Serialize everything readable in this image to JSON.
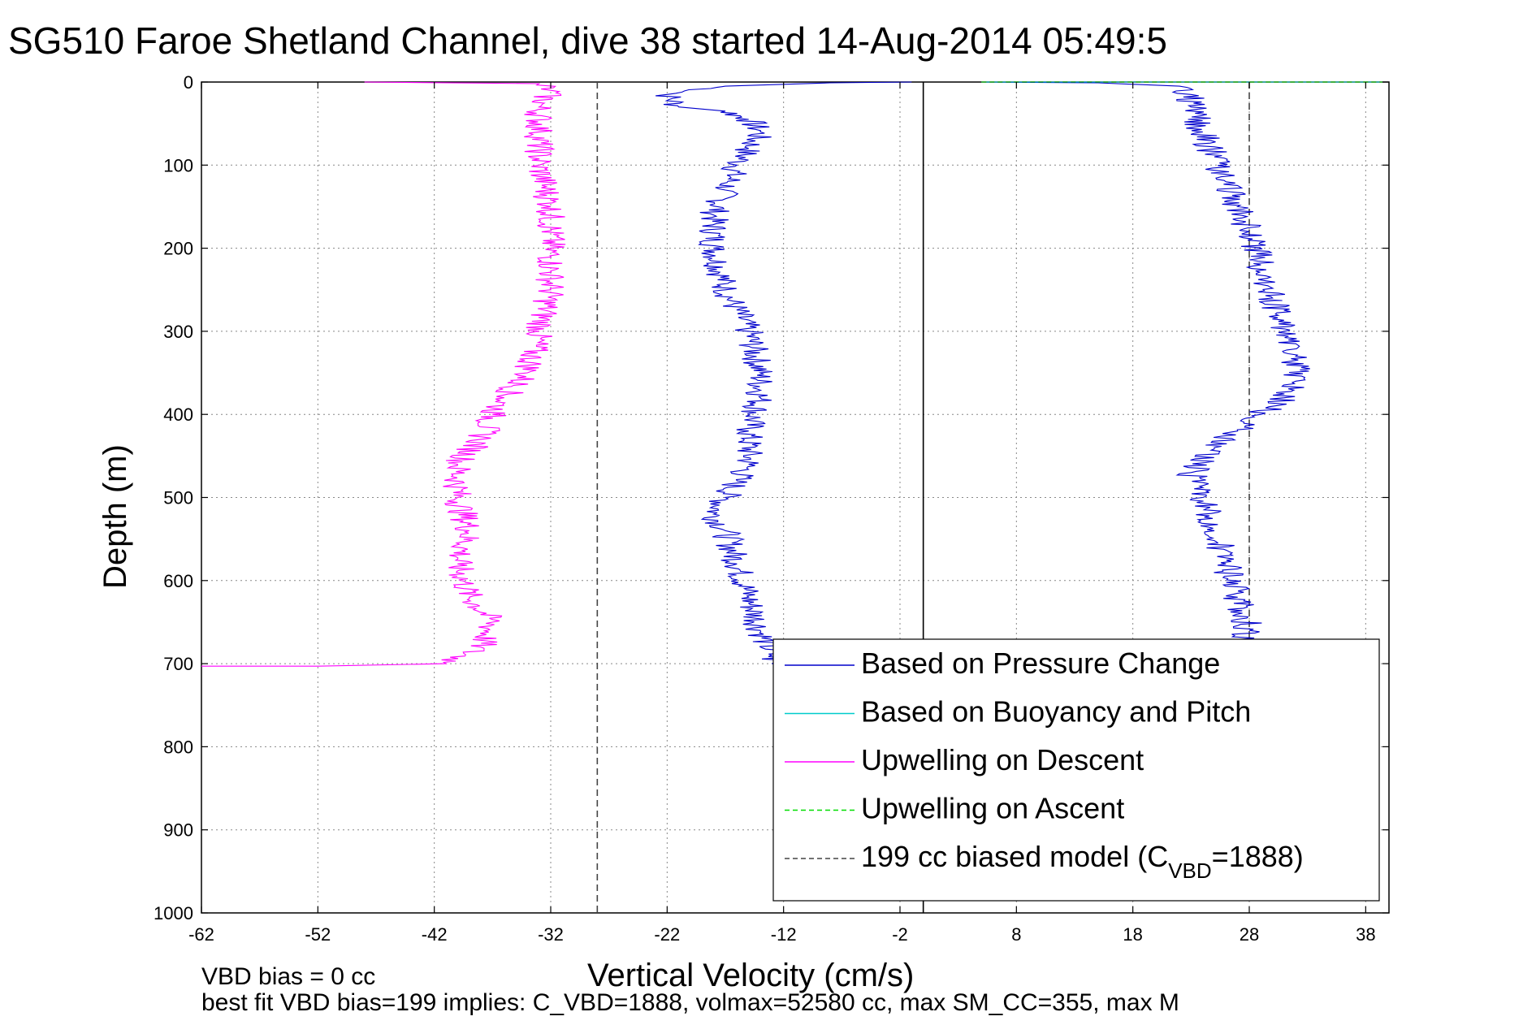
{
  "chart_data": {
    "type": "line",
    "title": "SG510 Faroe Shetland Channel, dive 38 started 14-Aug-2014 05:49:5",
    "xlabel": "Vertical Velocity (cm/s)",
    "ylabel": "Depth (m)",
    "xlim": [
      -62,
      40
    ],
    "ylim": [
      0,
      1000
    ],
    "y_reversed": true,
    "grid": true,
    "x_ticks": [
      -62,
      -52,
      -42,
      -32,
      -22,
      -12,
      -2,
      8,
      18,
      28,
      38
    ],
    "y_ticks": [
      0,
      100,
      200,
      300,
      400,
      500,
      600,
      700,
      800,
      900,
      1000
    ],
    "legend_position": "bottom-right",
    "legend": [
      {
        "label": "Based on Pressure Change",
        "color": "#0000cc",
        "style": "solid"
      },
      {
        "label": "Based on Buoyancy and Pitch",
        "color": "#00cccc",
        "style": "solid"
      },
      {
        "label": "Upwelling on Descent",
        "color": "#ff00ff",
        "style": "solid"
      },
      {
        "label": "Upwelling on Ascent",
        "color": "#00dd00",
        "style": "dashed"
      },
      {
        "label": "199 cc biased model (C",
        "label_sub": "VBD",
        "label_tail": "=1888)",
        "color": "#444444",
        "style": "dashed"
      }
    ],
    "series": [
      {
        "name": "Based on Pressure Change",
        "color": "#0000cc",
        "points": [
          [
            -1,
            0
          ],
          [
            -8,
            1
          ],
          [
            -17,
            5
          ],
          [
            -22,
            15
          ],
          [
            -21,
            30
          ],
          [
            -17,
            35
          ],
          [
            -15,
            45
          ],
          [
            -14,
            60
          ],
          [
            -15,
            80
          ],
          [
            -16,
            100
          ],
          [
            -17,
            130
          ],
          [
            -18,
            160
          ],
          [
            -18,
            200
          ],
          [
            -17,
            250
          ],
          [
            -15,
            300
          ],
          [
            -14,
            350
          ],
          [
            -14,
            380
          ],
          [
            -15,
            420
          ],
          [
            -15,
            460
          ],
          [
            -16,
            480
          ],
          [
            -17,
            500
          ],
          [
            -18,
            520
          ],
          [
            -17,
            540
          ],
          [
            -16,
            580
          ],
          [
            -15,
            620
          ],
          [
            -14,
            660
          ],
          [
            -13,
            690
          ],
          [
            -13,
            700
          ],
          [
            14,
            702
          ],
          [
            28,
            700
          ],
          [
            27,
            680
          ],
          [
            28,
            660
          ],
          [
            27,
            620
          ],
          [
            26,
            580
          ],
          [
            25,
            540
          ],
          [
            24,
            500
          ],
          [
            23,
            470
          ],
          [
            25,
            440
          ],
          [
            27,
            420
          ],
          [
            29,
            400
          ],
          [
            31,
            380
          ],
          [
            32,
            360
          ],
          [
            32,
            330
          ],
          [
            31,
            300
          ],
          [
            30,
            260
          ],
          [
            29,
            220
          ],
          [
            28,
            180
          ],
          [
            27,
            150
          ],
          [
            26,
            120
          ],
          [
            25,
            90
          ],
          [
            24,
            60
          ],
          [
            23,
            30
          ],
          [
            23,
            15
          ],
          [
            22,
            5
          ],
          [
            15,
            1
          ],
          [
            5,
            0
          ]
        ]
      },
      {
        "name": "Based on Buoyancy and Pitch",
        "color": "#00cccc",
        "points": [
          [
            5,
            0
          ],
          [
            20,
            0
          ],
          [
            40,
            0
          ]
        ]
      },
      {
        "name": "Upwelling on Descent",
        "color": "#ff00ff",
        "points": [
          [
            -48,
            0
          ],
          [
            -33,
            2
          ],
          [
            -32,
            10
          ],
          [
            -33,
            30
          ],
          [
            -33,
            60
          ],
          [
            -33,
            100
          ],
          [
            -32,
            150
          ],
          [
            -32,
            200
          ],
          [
            -32,
            250
          ],
          [
            -33,
            300
          ],
          [
            -34,
            350
          ],
          [
            -36,
            380
          ],
          [
            -37,
            400
          ],
          [
            -38,
            430
          ],
          [
            -40,
            460
          ],
          [
            -40,
            500
          ],
          [
            -39,
            540
          ],
          [
            -40,
            580
          ],
          [
            -39,
            620
          ],
          [
            -37,
            650
          ],
          [
            -38,
            680
          ],
          [
            -41,
            700
          ],
          [
            -52,
            703
          ],
          [
            -62,
            703
          ]
        ]
      },
      {
        "name": "Upwelling on Ascent",
        "color": "#00dd00",
        "points": [
          [
            5,
            0
          ],
          [
            40,
            0
          ]
        ]
      },
      {
        "name": "199 cc biased model",
        "color": "#444444",
        "points": []
      }
    ],
    "reference_lines": [
      {
        "x": -28,
        "style": "dashed",
        "color": "#444444",
        "y_range": [
          0,
          1000
        ]
      },
      {
        "x": 28,
        "style": "dashed",
        "color": "#444444",
        "y_range": [
          0,
          700
        ]
      },
      {
        "x": 0,
        "style": "solid",
        "color": "#000000",
        "y_range": [
          0,
          1000
        ]
      }
    ]
  },
  "footer": {
    "line1": "VBD bias = 0 cc",
    "line2": "best fit VBD bias=199 implies: C_VBD=1888, volmax=52580 cc, max SM_CC=355, max M"
  }
}
